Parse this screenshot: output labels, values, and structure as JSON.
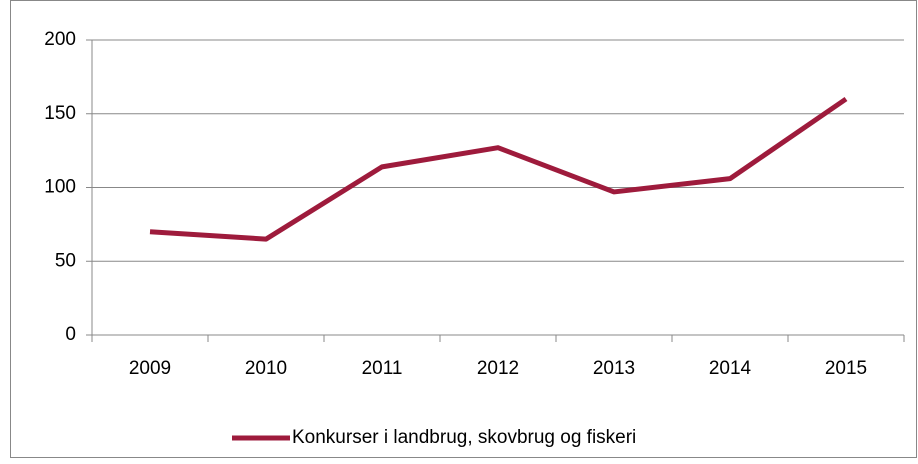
{
  "chart_data": {
    "type": "line",
    "categories": [
      "2009",
      "2010",
      "2011",
      "2012",
      "2013",
      "2014",
      "2015"
    ],
    "series": [
      {
        "name": "Konkurser i landbrug, skovbrug og fiskeri",
        "color": "#9e1b3c",
        "values": [
          70,
          65,
          114,
          127,
          97,
          106,
          160
        ]
      }
    ],
    "ylim": [
      0,
      200
    ],
    "yticks": [
      0,
      50,
      100,
      150,
      200
    ],
    "grid": true,
    "legend": "bottom"
  }
}
